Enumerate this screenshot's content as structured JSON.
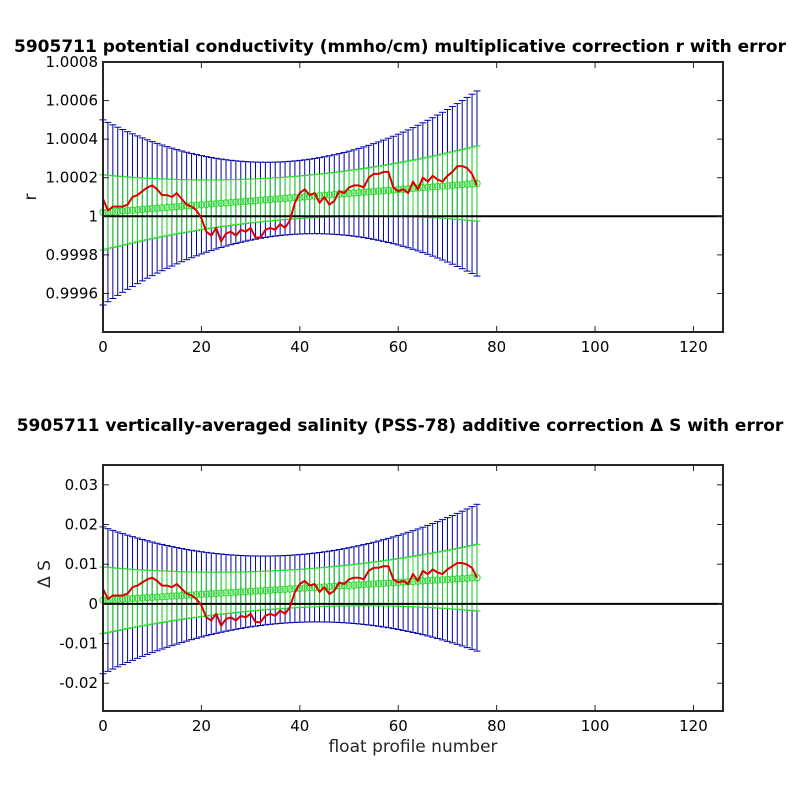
{
  "chart_data": [
    {
      "type": "line",
      "title": "5905711 potential conductivity (mmho/cm) multiplicative correction r with error",
      "xlabel": "",
      "ylabel": "r",
      "xlim": [
        0,
        126
      ],
      "ylim": [
        0.9994,
        1.0008
      ],
      "xticks": [
        0,
        20,
        40,
        60,
        80,
        100,
        120
      ],
      "xtick_labels": [
        "0",
        "20",
        "40",
        "60",
        "80",
        "100",
        "120"
      ],
      "yticks": [
        0.9996,
        0.9998,
        1.0,
        1.0002,
        1.0004,
        1.0006,
        1.0008
      ],
      "ytick_labels": [
        "0.9996",
        "0.9998",
        "1",
        "1.0002",
        "1.0004",
        "1.0006",
        "1.0008"
      ],
      "reference_line": 1.0,
      "n_profiles": 77,
      "fit": {
        "y0": 1.00002,
        "y1": 1.00017
      },
      "green_halfwidth": {
        "ends": 0.000195,
        "mid": 0.00011
      },
      "blue_halfwidth": {
        "ends": 0.00048,
        "mid": 0.00019
      },
      "series": [
        {
          "kind": "raw",
          "x": [
            0,
            1,
            2,
            3,
            4,
            5,
            6,
            7,
            8,
            9,
            10,
            11,
            12,
            13,
            14,
            15,
            16,
            17,
            18,
            19,
            20,
            21,
            22,
            23,
            24,
            25,
            26,
            27,
            28,
            29,
            30,
            31,
            32,
            33,
            34,
            35,
            36,
            37,
            38,
            39,
            40,
            41,
            42,
            43,
            44,
            45,
            46,
            47,
            48,
            49,
            50,
            51,
            52,
            53,
            54,
            55,
            56,
            57,
            58,
            59,
            60,
            61,
            62,
            63,
            64,
            65,
            66,
            67,
            68,
            69,
            70,
            71,
            72,
            73,
            74,
            75,
            76
          ],
          "y": [
            1.00009,
            1.00003,
            1.00005,
            1.00005,
            1.00005,
            1.00006,
            1.0001,
            1.00011,
            1.00013,
            1.00015,
            1.00016,
            1.00014,
            1.00011,
            1.00011,
            1.0001,
            1.00012,
            1.00009,
            1.00006,
            1.00005,
            1.00003,
            0.99999,
            0.99992,
            0.9999,
            0.99994,
            0.99987,
            0.99991,
            0.99992,
            0.9999,
            0.99993,
            0.99992,
            0.99994,
            0.99989,
            0.99989,
            0.99993,
            0.99994,
            0.99993,
            0.99996,
            0.99994,
            0.99998,
            1.00007,
            1.00012,
            1.00014,
            1.00011,
            1.00012,
            1.00007,
            1.0001,
            1.00006,
            1.00008,
            1.00013,
            1.00012,
            1.00015,
            1.00016,
            1.00016,
            1.00015,
            1.0002,
            1.00022,
            1.00022,
            1.00023,
            1.00023,
            1.00015,
            1.00013,
            1.00014,
            1.00012,
            1.00018,
            1.00014,
            1.0002,
            1.00018,
            1.00021,
            1.00019,
            1.00018,
            1.00021,
            1.00023,
            1.00026,
            1.00026,
            1.00025,
            1.00022,
            1.00016
          ]
        }
      ]
    },
    {
      "type": "line",
      "title": "5905711 vertically-averaged salinity (PSS-78) additive correction Δ S with error",
      "xlabel": "float profile number",
      "ylabel": "Δ S",
      "xlim": [
        0,
        126
      ],
      "ylim": [
        -0.027,
        0.035
      ],
      "xticks": [
        0,
        20,
        40,
        60,
        80,
        100,
        120
      ],
      "xtick_labels": [
        "0",
        "20",
        "40",
        "60",
        "80",
        "100",
        "120"
      ],
      "yticks": [
        -0.02,
        -0.01,
        0,
        0.01,
        0.02,
        0.03
      ],
      "ytick_labels": [
        "-0.02",
        "-0.01",
        "0",
        "0.01",
        "0.02",
        "0.03"
      ],
      "reference_line": 0,
      "n_profiles": 77,
      "fit": {
        "y0": 0.0009,
        "y1": 0.0066
      },
      "green_halfwidth": {
        "ends": 0.0084,
        "mid": 0.0048
      },
      "blue_halfwidth": {
        "ends": 0.0185,
        "mid": 0.0085
      },
      "series": [
        {
          "kind": "raw",
          "x": [
            0,
            1,
            2,
            3,
            4,
            5,
            6,
            7,
            8,
            9,
            10,
            11,
            12,
            13,
            14,
            15,
            16,
            17,
            18,
            19,
            20,
            21,
            22,
            23,
            24,
            25,
            26,
            27,
            28,
            29,
            30,
            31,
            32,
            33,
            34,
            35,
            36,
            37,
            38,
            39,
            40,
            41,
            42,
            43,
            44,
            45,
            46,
            47,
            48,
            49,
            50,
            51,
            52,
            53,
            54,
            55,
            56,
            57,
            58,
            59,
            60,
            61,
            62,
            63,
            64,
            65,
            66,
            67,
            68,
            69,
            70,
            71,
            72,
            73,
            74,
            75,
            76
          ],
          "y": [
            0.0038,
            0.0012,
            0.0021,
            0.0021,
            0.0021,
            0.0026,
            0.0042,
            0.0046,
            0.0054,
            0.0062,
            0.0066,
            0.0058,
            0.0046,
            0.0046,
            0.0042,
            0.005,
            0.0038,
            0.0026,
            0.0021,
            0.0012,
            -0.0004,
            -0.0034,
            -0.0042,
            -0.0025,
            -0.0055,
            -0.0038,
            -0.0034,
            -0.0042,
            -0.003,
            -0.0034,
            -0.0025,
            -0.0046,
            -0.0046,
            -0.003,
            -0.0025,
            -0.003,
            -0.0017,
            -0.0025,
            -0.0008,
            0.003,
            0.005,
            0.0058,
            0.0046,
            0.005,
            0.003,
            0.0042,
            0.0025,
            0.0033,
            0.0054,
            0.005,
            0.0062,
            0.0066,
            0.0066,
            0.0062,
            0.0083,
            0.0091,
            0.0091,
            0.0095,
            0.0095,
            0.0062,
            0.0054,
            0.0058,
            0.005,
            0.0075,
            0.0058,
            0.0083,
            0.0075,
            0.0087,
            0.0079,
            0.0075,
            0.0087,
            0.0095,
            0.0103,
            0.0103,
            0.0099,
            0.0091,
            0.0066
          ]
        }
      ]
    }
  ]
}
